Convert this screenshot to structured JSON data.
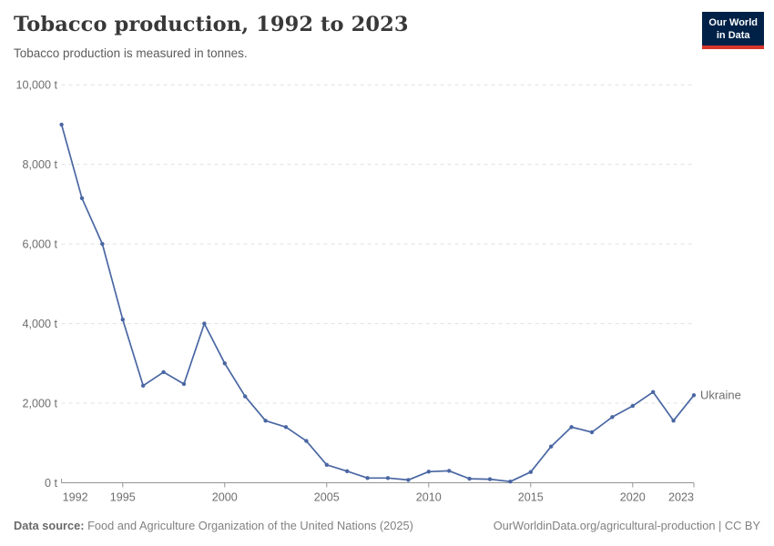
{
  "header": {
    "title": "Tobacco production, 1992 to 2023",
    "subtitle": "Tobacco production is measured in tonnes.",
    "logo": {
      "line1": "Our World",
      "line2": "in Data"
    }
  },
  "chart_data": {
    "type": "line",
    "title": "Tobacco production, 1992 to 2023",
    "unit": "tonnes",
    "xlim": [
      1992,
      2023
    ],
    "ylim": [
      0,
      10000
    ],
    "grid": "horizontal-dashed",
    "legend_position": "end-of-line-label",
    "x_ticks": [
      1992,
      1995,
      2000,
      2005,
      2010,
      2015,
      2020,
      2023
    ],
    "y_ticks": [
      0,
      2000,
      4000,
      6000,
      8000,
      10000
    ],
    "y_tick_labels": [
      "0 t",
      "2,000 t",
      "4,000 t",
      "6,000 t",
      "8,000 t",
      "10,000 t"
    ],
    "x": [
      1992,
      1993,
      1994,
      1995,
      1996,
      1997,
      1998,
      1999,
      2000,
      2001,
      2002,
      2003,
      2004,
      2005,
      2006,
      2007,
      2008,
      2009,
      2010,
      2011,
      2012,
      2013,
      2014,
      2015,
      2016,
      2017,
      2018,
      2019,
      2020,
      2021,
      2022,
      2023
    ],
    "series": [
      {
        "name": "Ukraine",
        "color": "#4a67a3",
        "values": [
          9000,
          7150,
          6000,
          4100,
          2440,
          2780,
          2480,
          4000,
          3000,
          2170,
          1560,
          1400,
          1050,
          450,
          290,
          120,
          120,
          70,
          280,
          300,
          100,
          90,
          30,
          270,
          910,
          1400,
          1270,
          1650,
          1930,
          2280,
          1560,
          2200
        ]
      }
    ]
  },
  "footer": {
    "source_label": "Data source:",
    "source_text": "Food and Agriculture Organization of the United Nations (2025)",
    "link_text": "OurWorldinData.org/agricultural-production | CC BY"
  },
  "colors": {
    "line": "#4a67a3",
    "logo_bg": "#002147",
    "logo_bar": "#d8352a",
    "grid": "#e0e0e0",
    "axis": "#949494",
    "tick_text": "#6e6e6e"
  }
}
